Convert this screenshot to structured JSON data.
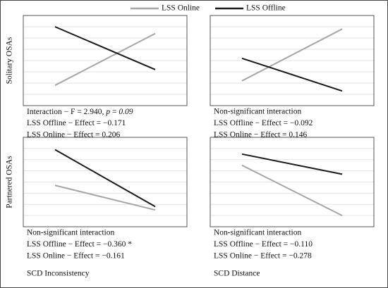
{
  "chart_data": [
    {
      "type": "line",
      "y_label": "Solitary OSAs",
      "categories": [
        null,
        null
      ],
      "ylim": [
        0,
        8
      ],
      "grid": true,
      "series": [
        {
          "name": "LSS Online",
          "color": "#a6a6a6",
          "values": [
            1.8,
            6.4
          ]
        },
        {
          "name": "LSS Offline",
          "color": "#1a1a1a",
          "values": [
            7.0,
            3.2
          ]
        }
      ],
      "annotations": [
        [
          "Interaction − F = 2.940, ",
          "p",
          " = ",
          "0.09"
        ],
        "LSS Offline − Effect = −0.171",
        "LSS Online − Effect = 0.206"
      ]
    },
    {
      "type": "line",
      "categories": [
        null,
        null
      ],
      "ylim": [
        0,
        8
      ],
      "grid": true,
      "series": [
        {
          "color": "#a6a6a6",
          "values": [
            2.2,
            6.8
          ]
        },
        {
          "color": "#1a1a1a",
          "values": [
            4.2,
            1.3
          ]
        }
      ],
      "annotations": [
        "Non-significant interaction",
        "LSS Offline − Effect = −0.092",
        "LSS Online − Effect = 0.146"
      ]
    },
    {
      "type": "line",
      "y_label": "Partnered OSAs",
      "x_label": "SCD Inconsistency",
      "categories": [
        null,
        null
      ],
      "ylim": [
        0,
        8
      ],
      "grid": true,
      "series": [
        {
          "color": "#a6a6a6",
          "values": [
            3.7,
            1.5
          ]
        },
        {
          "color": "#1a1a1a",
          "values": [
            6.9,
            1.8
          ]
        }
      ],
      "annotations": [
        "Non-significant interaction",
        "LSS Offline − Effect = −0.360 *",
        "LSS Online − Effect = −0.161"
      ]
    },
    {
      "type": "line",
      "x_label": "SCD Distance",
      "categories": [
        null,
        null
      ],
      "ylim": [
        0,
        8
      ],
      "grid": true,
      "series": [
        {
          "color": "#a6a6a6",
          "values": [
            5.5,
            1.0
          ]
        },
        {
          "color": "#1a1a1a",
          "values": [
            6.5,
            4.7
          ]
        }
      ],
      "annotations": [
        "Non-significant interaction",
        "LSS Offline − Effect = −0.110",
        "LSS Online − Effect = −0.278"
      ]
    }
  ]
}
